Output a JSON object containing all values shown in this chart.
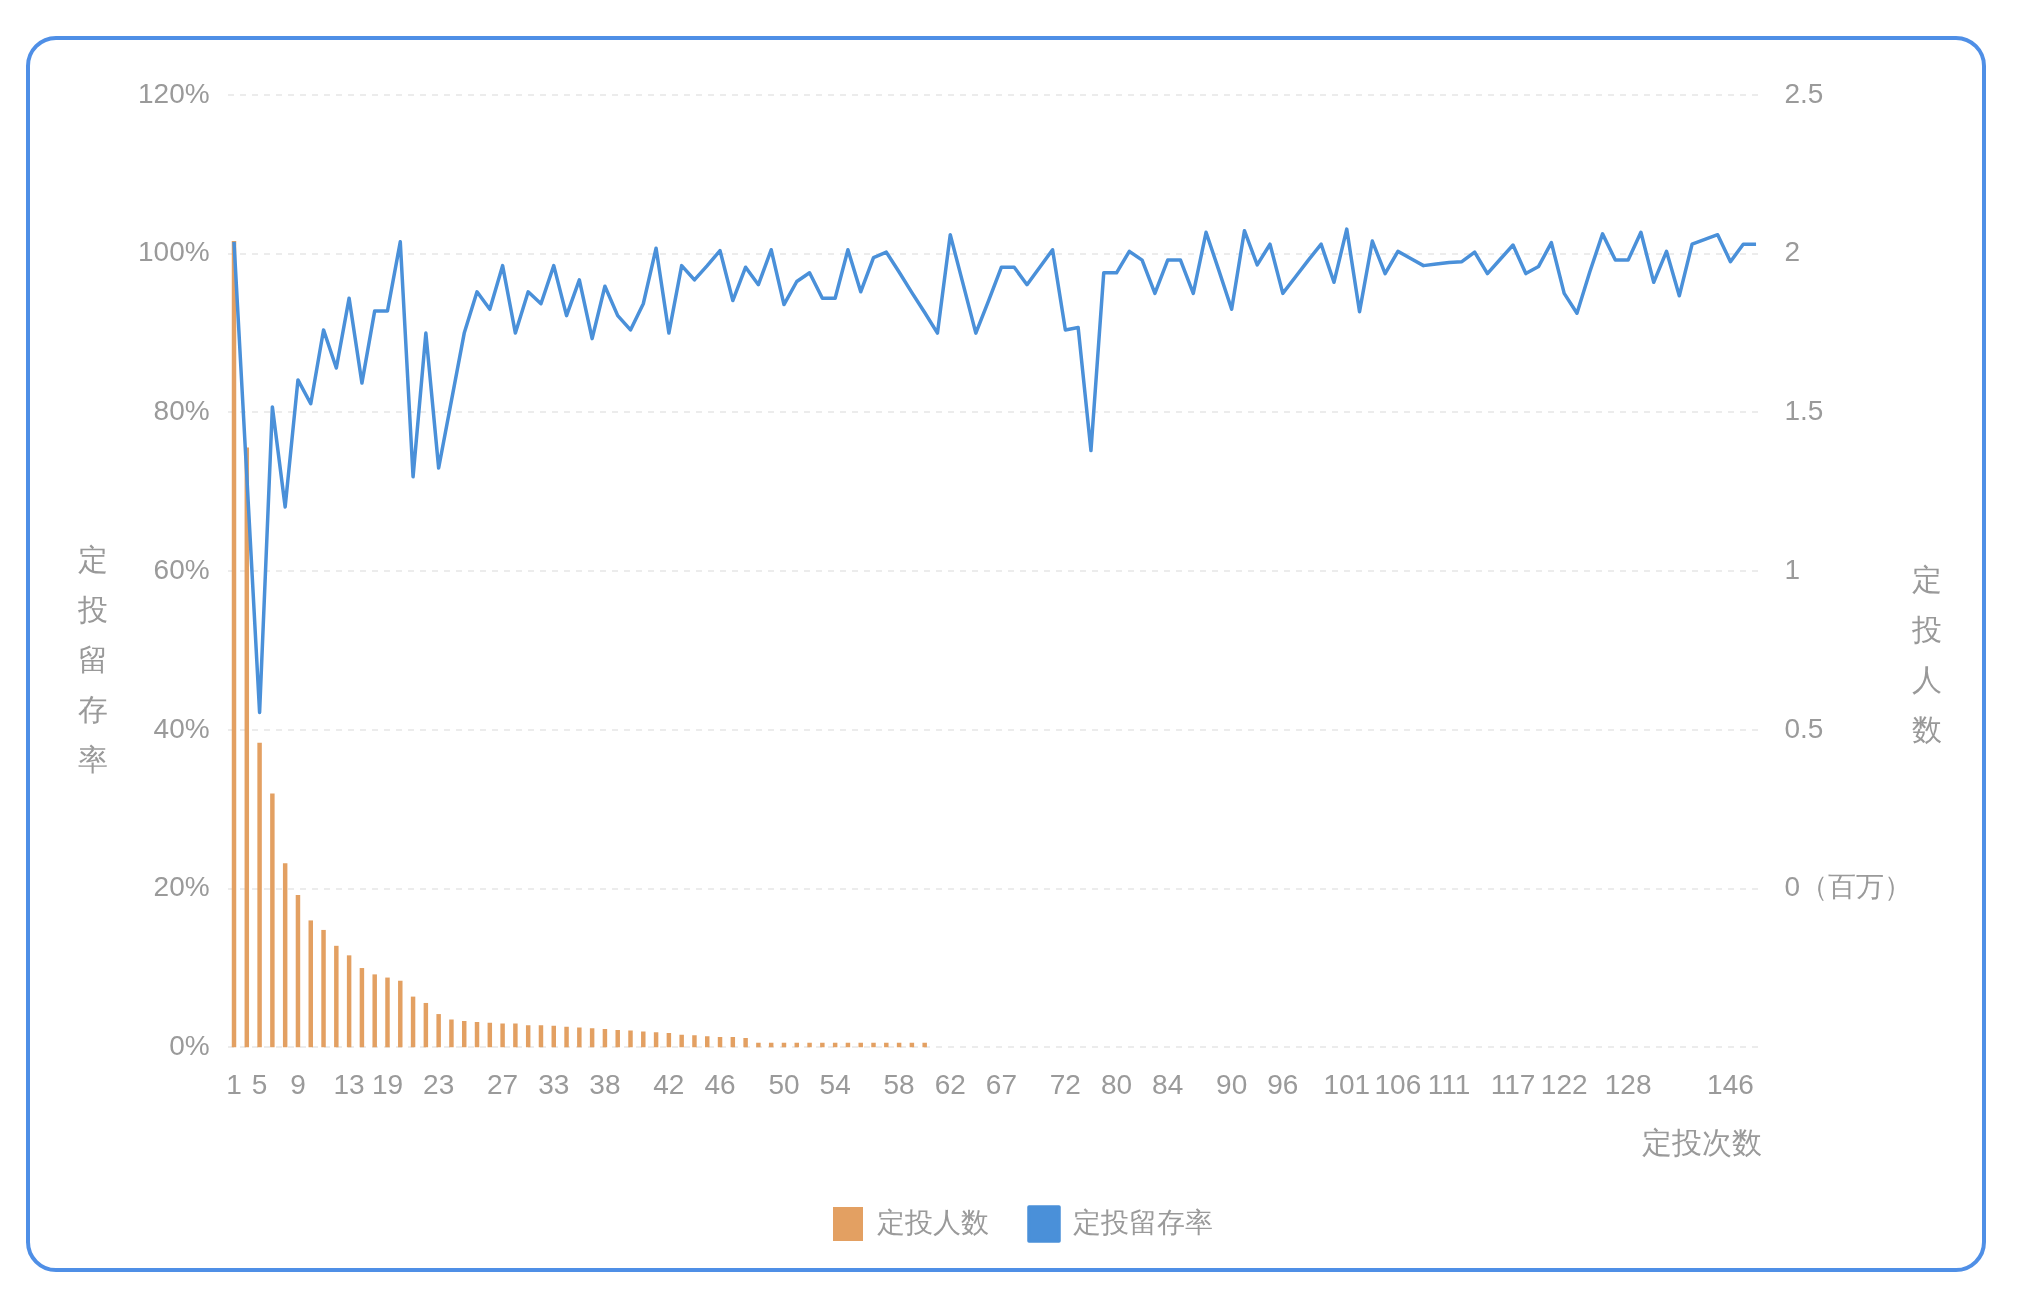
{
  "chart_data": {
    "type": "bar",
    "xlabel": "定投次数",
    "ylabel": "定投留存率",
    "y2label": "定投人数",
    "categories": [
      "1",
      null,
      "5",
      null,
      null,
      "9",
      null,
      null,
      null,
      "13",
      null,
      null,
      "19",
      null,
      null,
      null,
      "23",
      null,
      null,
      null,
      null,
      "27",
      null,
      null,
      null,
      "33",
      null,
      null,
      null,
      "38",
      null,
      null,
      null,
      null,
      "42",
      null,
      null,
      null,
      "46",
      null,
      null,
      null,
      null,
      "50",
      null,
      null,
      null,
      "54",
      null,
      null,
      null,
      null,
      "58",
      null,
      null,
      null,
      "62",
      null,
      null,
      null,
      "67",
      null,
      null,
      null,
      null,
      "72",
      null,
      null,
      null,
      "80",
      null,
      null,
      null,
      "84",
      null,
      null,
      null,
      null,
      "90",
      null,
      null,
      null,
      "96",
      null,
      null,
      null,
      null,
      "101",
      null,
      null,
      null,
      "106",
      null,
      null,
      null,
      "111",
      null,
      null,
      null,
      null,
      "117",
      null,
      null,
      null,
      "122",
      null,
      null,
      null,
      null,
      "128",
      null,
      null,
      null,
      null,
      null,
      null,
      null,
      "146",
      null,
      null
    ],
    "series": [
      {
        "name": "定投人数",
        "axis": "y2",
        "color": "#e3a062",
        "values": [
          2.54,
          1.89,
          0.96,
          0.8,
          0.58,
          0.48,
          0.4,
          0.37,
          0.32,
          0.29,
          0.25,
          0.23,
          0.22,
          0.21,
          0.16,
          0.14,
          0.105,
          0.088,
          0.083,
          0.08,
          0.078,
          0.075,
          0.075,
          0.07,
          0.07,
          0.068,
          0.065,
          0.063,
          0.06,
          0.058,
          0.055,
          0.053,
          0.05,
          0.048,
          0.045,
          0.04,
          0.038,
          0.035,
          0.033,
          0.033,
          0.03,
          0.015,
          0.015,
          0.015,
          0.015,
          0.015,
          0.015,
          0.015,
          0.015,
          0.015,
          0.015,
          0.015,
          0.015,
          0.015,
          0.015,
          null,
          null,
          null,
          null,
          null,
          null,
          null,
          null,
          null,
          null,
          null,
          null,
          null,
          null,
          null,
          null,
          null,
          null,
          null,
          null,
          null,
          null,
          null,
          null,
          null,
          null,
          null,
          null,
          null,
          null,
          null,
          null,
          null,
          null,
          null,
          null,
          null,
          null,
          null,
          null,
          null,
          null,
          null,
          null,
          null,
          null,
          null,
          null,
          null,
          null,
          null,
          null,
          null,
          null,
          null,
          null,
          null,
          null,
          null,
          null,
          null,
          null,
          null,
          null,
          null
        ],
        "base": [
          -0.5,
          -0.5,
          -0.5,
          -0.5,
          -0.5,
          -0.5,
          -0.5,
          -0.5,
          -0.5,
          -0.5,
          -0.5,
          -0.5,
          -0.5,
          -0.5,
          -0.5,
          -0.5,
          -0.5,
          -0.5,
          -0.5,
          -0.5,
          -0.5,
          -0.5,
          -0.5,
          -0.5,
          -0.5,
          -0.5,
          -0.5,
          -0.5,
          -0.5,
          -0.5,
          -0.5,
          -0.5,
          -0.5,
          -0.5,
          -0.5,
          -0.5,
          -0.5,
          -0.5,
          -0.5,
          -0.5,
          -0.5,
          -0.5,
          -0.5,
          -0.5,
          -0.5,
          -0.5,
          -0.5,
          -0.5,
          -0.5,
          -0.5,
          -0.5,
          -0.5,
          -0.5,
          -0.5,
          -0.5,
          null,
          null,
          null,
          null,
          null,
          null,
          null,
          null,
          null,
          null,
          null,
          null,
          null,
          null,
          null,
          null,
          null,
          null,
          null,
          null,
          null,
          null,
          null,
          null,
          null,
          null,
          null,
          null,
          null,
          null,
          null,
          null,
          null,
          null,
          null,
          null,
          null,
          null,
          null,
          null,
          null,
          null,
          null,
          null,
          null,
          null,
          null,
          null,
          null,
          null,
          null,
          null,
          null,
          null,
          null,
          null,
          null,
          null,
          null,
          null,
          null,
          null,
          null,
          null,
          null
        ]
      },
      {
        "name": "定投留存率",
        "type": "line",
        "color": "#4a90d9",
        "values": [
          101.5,
          72,
          42.2,
          80.7,
          68.1,
          84.1,
          81.1,
          90.4,
          85.6,
          94.4,
          83.7,
          92.8,
          92.8,
          101.5,
          71.9,
          90,
          73,
          81.5,
          90,
          95.2,
          93,
          98.5,
          90,
          95.2,
          93.7,
          98.5,
          92.2,
          96.7,
          89.3,
          95.9,
          92.2,
          90.4,
          93.7,
          100.7,
          90,
          98.5,
          96.7,
          98.5,
          100.4,
          94.1,
          98.3,
          96.1,
          100.5,
          93.6,
          96.5,
          97.6,
          94.4,
          94.4,
          100.5,
          95.2,
          99.5,
          100.2,
          97.7,
          95.1,
          92.6,
          90,
          102.4,
          96.2,
          90,
          94.1,
          98.3,
          98.3,
          96.1,
          98.3,
          100.5,
          90.4,
          90.7,
          75.2,
          97.6,
          97.6,
          100.3,
          99.2,
          95,
          99.2,
          99.2,
          95,
          102.7,
          97.9,
          93,
          102.9,
          98.6,
          101.2,
          95,
          97.1,
          99.2,
          101.2,
          96.4,
          103.1,
          92.7,
          101.6,
          97.5,
          100.3,
          99.4,
          98.5,
          98.7,
          98.9,
          99,
          100.2,
          97.5,
          99.3,
          101.1,
          97.5,
          98.4,
          101.4,
          95,
          92.5,
          97.7,
          102.5,
          99.2,
          99.2,
          102.7,
          96.4,
          100.3,
          94.7,
          101.2,
          101.8,
          102.4,
          99,
          101.2,
          101.2
        ]
      }
    ],
    "ylim": [
      0,
      120
    ],
    "yticks": [
      {
        "value": 0,
        "label": "0%"
      },
      {
        "value": 20,
        "label": "20%"
      },
      {
        "value": 40,
        "label": "40%"
      },
      {
        "value": 60,
        "label": "60%"
      },
      {
        "value": 80,
        "label": "80%"
      },
      {
        "value": 100,
        "label": "100%"
      },
      {
        "value": 120,
        "label": "120%"
      }
    ],
    "y2lim": [
      -0.5,
      2.5
    ],
    "y2ticks": [
      {
        "value": 0,
        "label": "0（百万）"
      },
      0.5,
      1,
      1.5,
      2,
      2.5
    ],
    "grid": "y",
    "legend": "bottom"
  }
}
